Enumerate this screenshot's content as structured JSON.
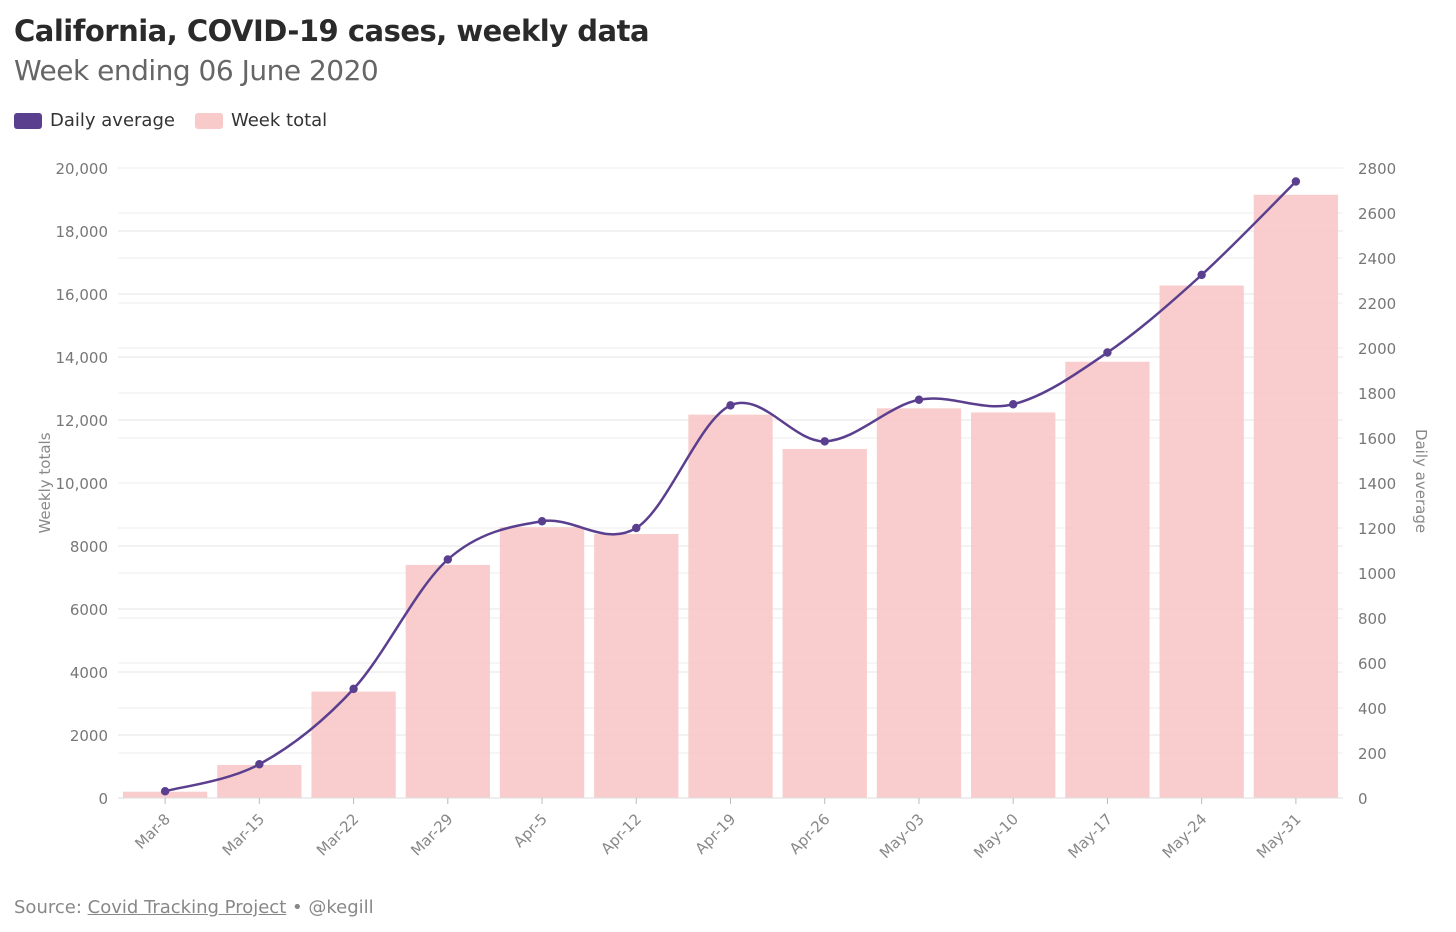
{
  "header": {
    "title": "California, COVID-19 cases, weekly data",
    "subtitle": "Week ending 06 June 2020"
  },
  "legend": {
    "line_label": "Daily average",
    "bar_label": "Week total",
    "line_color": "#5b3f8f",
    "bar_color": "#f9caca"
  },
  "footer": {
    "prefix": "Source:",
    "source_link": "Covid Tracking Project",
    "separator": "•",
    "handle": "@kegill"
  },
  "chart_data": {
    "type": "bar",
    "categories": [
      "Mar-8",
      "Mar-15",
      "Mar-22",
      "Mar-29",
      "Apr-5",
      "Apr-12",
      "Apr-19",
      "Apr-26",
      "May-03",
      "May-10",
      "May-17",
      "May-24",
      "May-31"
    ],
    "series": [
      {
        "name": "Week total",
        "type": "bar",
        "axis": "left",
        "values": [
          200,
          1050,
          3380,
          7400,
          8600,
          8380,
          12170,
          11080,
          12370,
          12240,
          13850,
          16270,
          19150
        ]
      },
      {
        "name": "Daily average",
        "type": "line",
        "axis": "right",
        "values": [
          30,
          150,
          485,
          1060,
          1230,
          1200,
          1745,
          1585,
          1770,
          1750,
          1980,
          2325,
          2740
        ]
      }
    ],
    "ylabel": "Weekly totals",
    "y2label": "Daily average",
    "ylim": [
      0,
      20000
    ],
    "y2lim": [
      0,
      2800
    ],
    "yticks": [
      "0",
      "2000",
      "4000",
      "6000",
      "8000",
      "10,000",
      "12,000",
      "14,000",
      "16,000",
      "18,000",
      "20,000"
    ],
    "y2ticks": [
      "0",
      "200",
      "400",
      "600",
      "800",
      "1000",
      "1200",
      "1400",
      "1600",
      "1800",
      "2000",
      "2200",
      "2400",
      "2600",
      "2800"
    ],
    "grid": true,
    "legend_position": "top-left"
  }
}
